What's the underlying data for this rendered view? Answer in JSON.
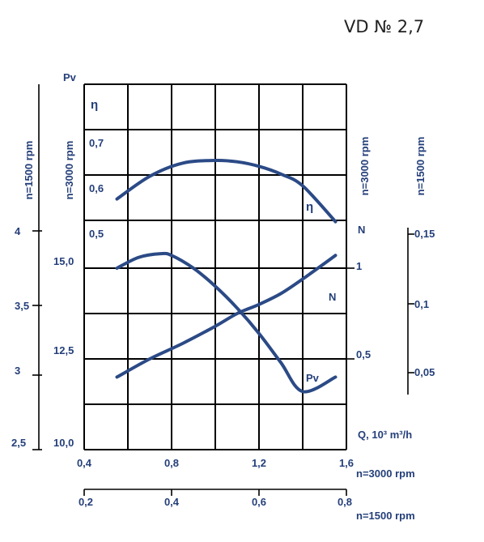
{
  "title": "VD № 2,7",
  "colors": {
    "curve": "#2b4a86",
    "label": "#243f7a",
    "grid": "#000000"
  },
  "chart_data": {
    "type": "line",
    "title": "VD № 2,7",
    "grid": true,
    "axes": {
      "x_n3000": {
        "label": "n=3000 rpm",
        "range": [
          0.4,
          1.6
        ],
        "ticks": [
          "0,4",
          "0,8",
          "1,2",
          "1,6"
        ]
      },
      "x_n1500": {
        "label": "n=1500 rpm",
        "range": [
          0.2,
          0.8
        ],
        "ticks": [
          "0,2",
          "0,4",
          "0,6",
          "0,8"
        ]
      },
      "x_unit": "Q, 10³ m³/h",
      "pv_n3000": {
        "label": "n=3000 rpm",
        "name": "Pv",
        "range": [
          10.0,
          17.5
        ],
        "ticks": [
          "10,0",
          "12,5",
          "15,0"
        ]
      },
      "pv_n1500": {
        "label": "n=1500 rpm",
        "range": [
          2.5,
          4.375
        ],
        "ticks": [
          "2,5",
          "3",
          "3,5",
          "4"
        ]
      },
      "eta": {
        "name": "η",
        "ticks": [
          "0,5",
          "0,6",
          "0,7"
        ]
      },
      "n_n3000": {
        "label": "n=3000 rpm",
        "name": "N",
        "ticks": [
          "0,5",
          "1"
        ]
      },
      "n_n1500": {
        "label": "n=1500 rpm",
        "ticks": [
          "0,05",
          "0,1",
          "0,15"
        ]
      }
    },
    "series": [
      {
        "name": "η",
        "axis": "eta",
        "x": [
          0.55,
          0.7,
          0.85,
          1.0,
          1.1,
          1.2,
          1.3,
          1.4,
          1.55
        ],
        "y": [
          0.59,
          0.64,
          0.669,
          0.675,
          0.672,
          0.662,
          0.645,
          0.619,
          0.54
        ]
      },
      {
        "name": "Pv",
        "axis": "pv_n3000",
        "x": [
          0.55,
          0.65,
          0.75,
          0.8,
          0.9,
          1.0,
          1.1,
          1.2,
          1.3,
          1.4,
          1.55
        ],
        "y": [
          15.0,
          15.3,
          15.4,
          15.35,
          15.0,
          14.5,
          13.9,
          13.2,
          12.4,
          11.6,
          12.0
        ]
      },
      {
        "name": "N",
        "axis": "n_n3000",
        "x": [
          0.55,
          0.7,
          0.85,
          1.0,
          1.1,
          1.2,
          1.3,
          1.4,
          1.55
        ],
        "y": [
          0.4,
          0.5,
          0.585,
          0.68,
          0.75,
          0.8,
          0.86,
          0.94,
          1.07
        ]
      }
    ]
  }
}
